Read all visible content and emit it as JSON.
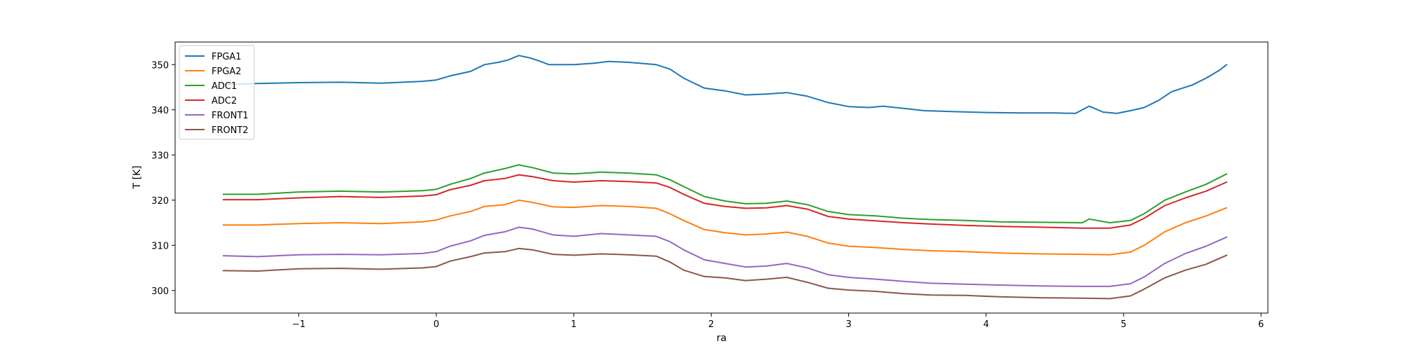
{
  "chart_data": {
    "type": "line",
    "title": "",
    "xlabel": "ra",
    "ylabel": "T [K]",
    "xlim": [
      -1.9,
      6.05
    ],
    "ylim": [
      295,
      355
    ],
    "x_ticks": [
      -1,
      0,
      1,
      2,
      3,
      4,
      5,
      6
    ],
    "x_tick_labels": [
      "−1",
      "0",
      "1",
      "2",
      "3",
      "4",
      "5",
      "6"
    ],
    "y_ticks": [
      300,
      310,
      320,
      330,
      340,
      350
    ],
    "y_tick_labels": [
      "300",
      "310",
      "320",
      "330",
      "340",
      "350"
    ],
    "grid": false,
    "legend_position": "top-left",
    "series": [
      {
        "name": "FPGA1",
        "color": "#1f77b4",
        "points": [
          [
            -1.55,
            345.6
          ],
          [
            -1.3,
            345.8
          ],
          [
            -1.0,
            346.0
          ],
          [
            -0.7,
            346.1
          ],
          [
            -0.4,
            345.9
          ],
          [
            -0.1,
            346.3
          ],
          [
            0.0,
            346.6
          ],
          [
            0.1,
            347.5
          ],
          [
            0.25,
            348.5
          ],
          [
            0.35,
            350.0
          ],
          [
            0.45,
            350.5
          ],
          [
            0.52,
            351.0
          ],
          [
            0.6,
            352.0
          ],
          [
            0.68,
            351.5
          ],
          [
            0.75,
            350.8
          ],
          [
            0.82,
            350.0
          ],
          [
            1.0,
            350.0
          ],
          [
            1.15,
            350.3
          ],
          [
            1.25,
            350.7
          ],
          [
            1.4,
            350.5
          ],
          [
            1.6,
            350.0
          ],
          [
            1.7,
            349.0
          ],
          [
            1.8,
            347.0
          ],
          [
            1.95,
            344.8
          ],
          [
            2.1,
            344.2
          ],
          [
            2.25,
            343.3
          ],
          [
            2.4,
            343.5
          ],
          [
            2.55,
            343.8
          ],
          [
            2.7,
            343.0
          ],
          [
            2.85,
            341.6
          ],
          [
            3.0,
            340.7
          ],
          [
            3.15,
            340.5
          ],
          [
            3.25,
            340.8
          ],
          [
            3.4,
            340.3
          ],
          [
            3.55,
            339.8
          ],
          [
            3.75,
            339.6
          ],
          [
            4.0,
            339.4
          ],
          [
            4.25,
            339.3
          ],
          [
            4.5,
            339.3
          ],
          [
            4.65,
            339.2
          ],
          [
            4.75,
            340.8
          ],
          [
            4.85,
            339.5
          ],
          [
            4.95,
            339.2
          ],
          [
            5.05,
            339.8
          ],
          [
            5.15,
            340.5
          ],
          [
            5.25,
            342.0
          ],
          [
            5.35,
            344.0
          ],
          [
            5.5,
            345.5
          ],
          [
            5.6,
            347.0
          ],
          [
            5.7,
            348.8
          ],
          [
            5.75,
            350.0
          ]
        ]
      },
      {
        "name": "FPGA2",
        "color": "#ff7f0e",
        "points": [
          [
            -1.55,
            314.5
          ],
          [
            -1.3,
            314.5
          ],
          [
            -1.0,
            314.8
          ],
          [
            -0.7,
            315.0
          ],
          [
            -0.4,
            314.8
          ],
          [
            -0.1,
            315.2
          ],
          [
            0.0,
            315.6
          ],
          [
            0.1,
            316.5
          ],
          [
            0.25,
            317.5
          ],
          [
            0.35,
            318.6
          ],
          [
            0.5,
            319.0
          ],
          [
            0.6,
            320.0
          ],
          [
            0.7,
            319.5
          ],
          [
            0.85,
            318.5
          ],
          [
            1.0,
            318.4
          ],
          [
            1.2,
            318.8
          ],
          [
            1.4,
            318.6
          ],
          [
            1.6,
            318.2
          ],
          [
            1.7,
            317.0
          ],
          [
            1.8,
            315.5
          ],
          [
            1.95,
            313.5
          ],
          [
            2.1,
            312.8
          ],
          [
            2.25,
            312.3
          ],
          [
            2.4,
            312.5
          ],
          [
            2.55,
            312.9
          ],
          [
            2.7,
            312.0
          ],
          [
            2.85,
            310.5
          ],
          [
            3.0,
            309.8
          ],
          [
            3.2,
            309.5
          ],
          [
            3.4,
            309.1
          ],
          [
            3.6,
            308.8
          ],
          [
            3.85,
            308.6
          ],
          [
            4.1,
            308.3
          ],
          [
            4.4,
            308.1
          ],
          [
            4.7,
            308.0
          ],
          [
            4.9,
            307.9
          ],
          [
            5.05,
            308.5
          ],
          [
            5.15,
            310.0
          ],
          [
            5.3,
            313.0
          ],
          [
            5.45,
            315.0
          ],
          [
            5.6,
            316.5
          ],
          [
            5.75,
            318.3
          ]
        ]
      },
      {
        "name": "ADC1",
        "color": "#2ca02c",
        "points": [
          [
            -1.55,
            321.3
          ],
          [
            -1.3,
            321.3
          ],
          [
            -1.0,
            321.8
          ],
          [
            -0.7,
            322.0
          ],
          [
            -0.4,
            321.8
          ],
          [
            -0.1,
            322.1
          ],
          [
            0.0,
            322.4
          ],
          [
            0.1,
            323.5
          ],
          [
            0.25,
            324.8
          ],
          [
            0.35,
            326.0
          ],
          [
            0.5,
            327.0
          ],
          [
            0.6,
            327.8
          ],
          [
            0.7,
            327.2
          ],
          [
            0.85,
            326.0
          ],
          [
            1.0,
            325.8
          ],
          [
            1.2,
            326.2
          ],
          [
            1.4,
            326.0
          ],
          [
            1.6,
            325.6
          ],
          [
            1.7,
            324.5
          ],
          [
            1.8,
            323.0
          ],
          [
            1.95,
            320.8
          ],
          [
            2.1,
            319.8
          ],
          [
            2.25,
            319.2
          ],
          [
            2.4,
            319.3
          ],
          [
            2.55,
            319.8
          ],
          [
            2.7,
            319.0
          ],
          [
            2.85,
            317.5
          ],
          [
            3.0,
            316.8
          ],
          [
            3.2,
            316.5
          ],
          [
            3.4,
            316.0
          ],
          [
            3.6,
            315.7
          ],
          [
            3.85,
            315.5
          ],
          [
            4.1,
            315.2
          ],
          [
            4.4,
            315.1
          ],
          [
            4.7,
            315.0
          ],
          [
            4.75,
            315.8
          ],
          [
            4.9,
            315.0
          ],
          [
            5.05,
            315.5
          ],
          [
            5.15,
            317.0
          ],
          [
            5.3,
            320.0
          ],
          [
            5.45,
            321.8
          ],
          [
            5.6,
            323.5
          ],
          [
            5.75,
            325.8
          ]
        ]
      },
      {
        "name": "ADC2",
        "color": "#d62728",
        "points": [
          [
            -1.55,
            320.1
          ],
          [
            -1.3,
            320.1
          ],
          [
            -1.0,
            320.5
          ],
          [
            -0.7,
            320.8
          ],
          [
            -0.4,
            320.6
          ],
          [
            -0.1,
            320.9
          ],
          [
            0.0,
            321.2
          ],
          [
            0.1,
            322.3
          ],
          [
            0.25,
            323.3
          ],
          [
            0.35,
            324.3
          ],
          [
            0.5,
            324.8
          ],
          [
            0.6,
            325.6
          ],
          [
            0.7,
            325.2
          ],
          [
            0.85,
            324.3
          ],
          [
            1.0,
            324.0
          ],
          [
            1.2,
            324.3
          ],
          [
            1.4,
            324.1
          ],
          [
            1.6,
            323.8
          ],
          [
            1.7,
            322.8
          ],
          [
            1.8,
            321.3
          ],
          [
            1.95,
            319.3
          ],
          [
            2.1,
            318.6
          ],
          [
            2.25,
            318.2
          ],
          [
            2.4,
            318.3
          ],
          [
            2.55,
            318.8
          ],
          [
            2.7,
            318.0
          ],
          [
            2.85,
            316.4
          ],
          [
            3.0,
            315.8
          ],
          [
            3.2,
            315.4
          ],
          [
            3.4,
            315.0
          ],
          [
            3.6,
            314.7
          ],
          [
            3.85,
            314.4
          ],
          [
            4.1,
            314.2
          ],
          [
            4.4,
            314.0
          ],
          [
            4.7,
            313.8
          ],
          [
            4.9,
            313.8
          ],
          [
            5.05,
            314.5
          ],
          [
            5.15,
            316.0
          ],
          [
            5.3,
            318.8
          ],
          [
            5.45,
            320.5
          ],
          [
            5.6,
            322.0
          ],
          [
            5.75,
            324.0
          ]
        ]
      },
      {
        "name": "FRONT1",
        "color": "#9467bd",
        "points": [
          [
            -1.55,
            307.7
          ],
          [
            -1.3,
            307.5
          ],
          [
            -1.0,
            307.9
          ],
          [
            -0.7,
            308.0
          ],
          [
            -0.4,
            307.9
          ],
          [
            -0.1,
            308.2
          ],
          [
            0.0,
            308.6
          ],
          [
            0.1,
            309.8
          ],
          [
            0.25,
            311.0
          ],
          [
            0.35,
            312.2
          ],
          [
            0.5,
            313.0
          ],
          [
            0.6,
            314.0
          ],
          [
            0.7,
            313.6
          ],
          [
            0.85,
            312.3
          ],
          [
            1.0,
            312.0
          ],
          [
            1.2,
            312.6
          ],
          [
            1.4,
            312.3
          ],
          [
            1.6,
            312.0
          ],
          [
            1.7,
            310.8
          ],
          [
            1.8,
            309.0
          ],
          [
            1.95,
            306.8
          ],
          [
            2.1,
            306.0
          ],
          [
            2.25,
            305.2
          ],
          [
            2.4,
            305.4
          ],
          [
            2.55,
            306.0
          ],
          [
            2.7,
            305.0
          ],
          [
            2.85,
            303.5
          ],
          [
            3.0,
            302.9
          ],
          [
            3.2,
            302.5
          ],
          [
            3.4,
            302.0
          ],
          [
            3.6,
            301.6
          ],
          [
            3.85,
            301.4
          ],
          [
            4.1,
            301.2
          ],
          [
            4.4,
            301.0
          ],
          [
            4.7,
            300.9
          ],
          [
            4.9,
            300.9
          ],
          [
            5.05,
            301.5
          ],
          [
            5.15,
            303.0
          ],
          [
            5.3,
            306.0
          ],
          [
            5.45,
            308.2
          ],
          [
            5.6,
            309.8
          ],
          [
            5.75,
            311.8
          ]
        ]
      },
      {
        "name": "FRONT2",
        "color": "#8c564b",
        "points": [
          [
            -1.55,
            304.4
          ],
          [
            -1.3,
            304.3
          ],
          [
            -1.0,
            304.8
          ],
          [
            -0.7,
            304.9
          ],
          [
            -0.4,
            304.7
          ],
          [
            -0.1,
            305.0
          ],
          [
            0.0,
            305.3
          ],
          [
            0.1,
            306.5
          ],
          [
            0.25,
            307.5
          ],
          [
            0.35,
            308.3
          ],
          [
            0.5,
            308.6
          ],
          [
            0.6,
            309.3
          ],
          [
            0.7,
            309.0
          ],
          [
            0.85,
            308.0
          ],
          [
            1.0,
            307.8
          ],
          [
            1.2,
            308.1
          ],
          [
            1.4,
            307.9
          ],
          [
            1.6,
            307.6
          ],
          [
            1.7,
            306.3
          ],
          [
            1.8,
            304.5
          ],
          [
            1.95,
            303.1
          ],
          [
            2.1,
            302.8
          ],
          [
            2.25,
            302.2
          ],
          [
            2.4,
            302.5
          ],
          [
            2.55,
            302.9
          ],
          [
            2.7,
            301.8
          ],
          [
            2.85,
            300.5
          ],
          [
            3.0,
            300.1
          ],
          [
            3.2,
            299.8
          ],
          [
            3.4,
            299.3
          ],
          [
            3.6,
            299.0
          ],
          [
            3.85,
            298.9
          ],
          [
            4.1,
            298.6
          ],
          [
            4.4,
            298.4
          ],
          [
            4.7,
            298.3
          ],
          [
            4.9,
            298.2
          ],
          [
            5.05,
            298.8
          ],
          [
            5.15,
            300.3
          ],
          [
            5.3,
            302.8
          ],
          [
            5.45,
            304.5
          ],
          [
            5.6,
            305.8
          ],
          [
            5.75,
            307.8
          ]
        ]
      }
    ]
  }
}
